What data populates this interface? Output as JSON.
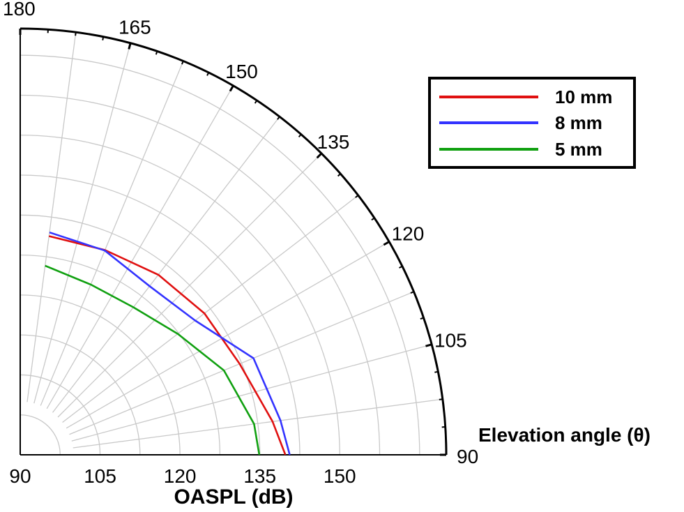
{
  "chart_data": {
    "type": "polar-line",
    "title": "",
    "radial_axis": {
      "label": "OASPL (dB)",
      "range": [
        90,
        170
      ],
      "ticks": [
        90,
        105,
        120,
        135,
        150
      ]
    },
    "angular_axis": {
      "label": "Elevation angle (θ)",
      "range": [
        90,
        180
      ],
      "ticks": [
        90,
        105,
        120,
        135,
        150,
        165,
        180
      ]
    },
    "grid": true,
    "legend_position": "top-right",
    "series": [
      {
        "name": "10 mm",
        "color": "#e01010",
        "points": [
          {
            "angle": 90,
            "value": 139.8
          },
          {
            "angle": 97.5,
            "value": 137.8
          },
          {
            "angle": 112.5,
            "value": 134.6
          },
          {
            "angle": 127.5,
            "value": 133.6
          },
          {
            "angle": 142.5,
            "value": 132.6
          },
          {
            "angle": 157.5,
            "value": 131.6
          },
          {
            "angle": 172.5,
            "value": 131.4
          }
        ]
      },
      {
        "name": "8 mm",
        "color": "#3333ff",
        "points": [
          {
            "angle": 90,
            "value": 140.6
          },
          {
            "angle": 97.5,
            "value": 139.3
          },
          {
            "angle": 112.5,
            "value": 137.4
          },
          {
            "angle": 127.5,
            "value": 131.4
          },
          {
            "angle": 142.5,
            "value": 129.9
          },
          {
            "angle": 157.5,
            "value": 131.5
          },
          {
            "angle": 172.5,
            "value": 132.1
          }
        ]
      },
      {
        "name": "5 mm",
        "color": "#10a010",
        "points": [
          {
            "angle": 90,
            "value": 134.9
          },
          {
            "angle": 97.5,
            "value": 134.3
          },
          {
            "angle": 112.5,
            "value": 131.4
          },
          {
            "angle": 127.5,
            "value": 127.3
          },
          {
            "angle": 142.5,
            "value": 124.9
          },
          {
            "angle": 157.5,
            "value": 124.6
          },
          {
            "angle": 172.5,
            "value": 125.8
          }
        ]
      }
    ]
  }
}
